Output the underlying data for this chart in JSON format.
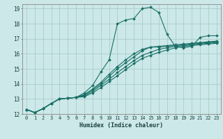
{
  "title": "",
  "xlabel": "Humidex (Indice chaleur)",
  "ylabel": "",
  "xlim": [
    -0.5,
    23.5
  ],
  "ylim": [
    12,
    19.3
  ],
  "xticks": [
    0,
    1,
    2,
    3,
    4,
    5,
    6,
    7,
    8,
    9,
    10,
    11,
    12,
    13,
    14,
    15,
    16,
    17,
    18,
    19,
    20,
    21,
    22,
    23
  ],
  "yticks": [
    12,
    13,
    14,
    15,
    16,
    17,
    18,
    19
  ],
  "bg_color": "#cce8e8",
  "line_color": "#1a7068",
  "grid_color": "#aacccc",
  "lines": [
    [
      12.3,
      12.1,
      12.35,
      12.7,
      13.0,
      13.05,
      13.1,
      13.4,
      13.9,
      14.8,
      15.6,
      18.0,
      18.25,
      18.35,
      19.0,
      19.1,
      18.75,
      17.3,
      16.5,
      16.4,
      16.5,
      17.1,
      17.2,
      17.2
    ],
    [
      12.3,
      12.1,
      12.35,
      12.7,
      13.0,
      13.05,
      13.1,
      13.25,
      13.6,
      14.0,
      14.5,
      15.0,
      15.4,
      15.8,
      16.2,
      16.45,
      16.5,
      16.55,
      16.6,
      16.65,
      16.7,
      16.75,
      16.8,
      16.85
    ],
    [
      12.3,
      12.1,
      12.35,
      12.7,
      13.0,
      13.05,
      13.1,
      13.3,
      13.65,
      14.1,
      14.65,
      15.15,
      15.6,
      16.0,
      16.3,
      16.45,
      16.45,
      16.5,
      16.55,
      16.6,
      16.65,
      16.7,
      16.75,
      16.8
    ],
    [
      12.3,
      12.1,
      12.35,
      12.7,
      13.0,
      13.05,
      13.1,
      13.2,
      13.5,
      13.9,
      14.3,
      14.75,
      15.15,
      15.55,
      15.9,
      16.1,
      16.3,
      16.4,
      16.5,
      16.55,
      16.6,
      16.65,
      16.7,
      16.75
    ],
    [
      12.3,
      12.1,
      12.35,
      12.7,
      13.0,
      13.05,
      13.1,
      13.15,
      13.4,
      13.75,
      14.15,
      14.55,
      14.95,
      15.35,
      15.7,
      15.9,
      16.1,
      16.25,
      16.4,
      16.5,
      16.55,
      16.6,
      16.65,
      16.7
    ]
  ]
}
